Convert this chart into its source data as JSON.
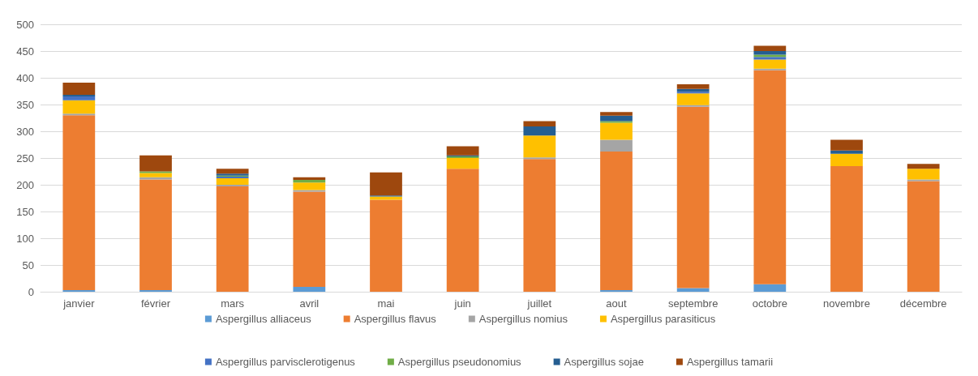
{
  "chart_data": {
    "type": "bar",
    "stacked": true,
    "categories": [
      "janvier",
      "février",
      "mars",
      "avril",
      "mai",
      "juin",
      "juillet",
      "aout",
      "septembre",
      "octobre",
      "novembre",
      "décembre"
    ],
    "series": [
      {
        "name": "Aspergillus alliaceus",
        "color": "#5b9bd5",
        "values": [
          3,
          3,
          0,
          9,
          0,
          0,
          0,
          3,
          7,
          14,
          0,
          0
        ]
      },
      {
        "name": "Aspergillus flavus",
        "color": "#ed7d31",
        "values": [
          327,
          207,
          197,
          178,
          172,
          230,
          248,
          259,
          339,
          400,
          235,
          207
        ]
      },
      {
        "name": "Aspergillus nomius",
        "color": "#a5a5a5",
        "values": [
          3,
          4,
          3,
          3,
          0,
          0,
          3,
          22,
          3,
          3,
          0,
          3
        ]
      },
      {
        "name": "Aspergillus parasiticus",
        "color": "#ffc000",
        "values": [
          25,
          8,
          12,
          14,
          6,
          20,
          41,
          32,
          22,
          17,
          23,
          20
        ]
      },
      {
        "name": "Aspergillus parvisclerotigenus",
        "color": "#4472c4",
        "values": [
          7,
          0,
          3,
          0,
          0,
          0,
          0,
          0,
          3,
          5,
          0,
          0
        ]
      },
      {
        "name": "Aspergillus pseudonomius",
        "color": "#70ad47",
        "values": [
          0,
          3,
          2,
          5,
          0,
          3,
          0,
          3,
          0,
          4,
          0,
          0
        ]
      },
      {
        "name": "Aspergillus sojae",
        "color": "#255e91",
        "values": [
          3,
          0,
          4,
          0,
          2,
          2,
          17,
          10,
          5,
          7,
          6,
          0
        ]
      },
      {
        "name": "Aspergillus tamarii",
        "color": "#9e480e",
        "values": [
          23,
          30,
          9,
          5,
          43,
          17,
          10,
          7,
          9,
          10,
          20,
          9
        ]
      }
    ],
    "ylim": [
      0,
      500
    ],
    "yticks": [
      0,
      50,
      100,
      150,
      200,
      250,
      300,
      350,
      400,
      450,
      500
    ],
    "grid": "y",
    "legend": "bottom"
  }
}
